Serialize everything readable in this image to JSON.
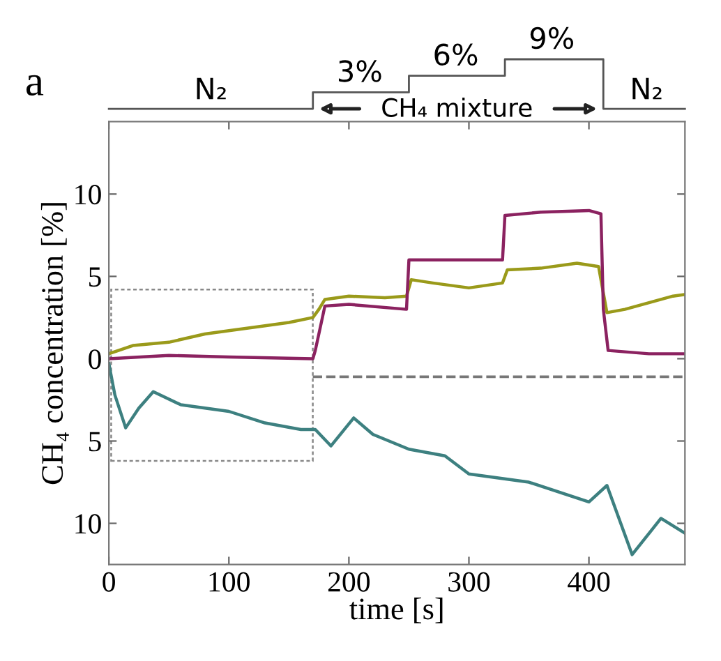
{
  "chart_data": {
    "type": "line",
    "xlabel": "time [s]",
    "ylabel": "CH₄ concentration [%]",
    "annotations": [
      "a",
      "N₂",
      "3%",
      "6%",
      "9%",
      "CH₄ mixture",
      "N₂"
    ],
    "xlim": [
      0,
      480
    ],
    "xticks": [
      0,
      100,
      200,
      300,
      400
    ],
    "ylim": [
      -12.5,
      14.4
    ],
    "yticks": [
      {
        "value": -10,
        "label": "10"
      },
      {
        "value": -5,
        "label": "5"
      },
      0,
      5,
      10
    ],
    "grid": false,
    "marker": "none",
    "line_style": "solid",
    "ref_lines": [
      {
        "axis": "y",
        "value": -1.1,
        "color": "#777777",
        "line_style": "dashed"
      }
    ],
    "series": [
      {
        "color": "#9a9a1a",
        "x": [
          0,
          20,
          50,
          80,
          100,
          130,
          150,
          170,
          175,
          180,
          200,
          230,
          248,
          252,
          270,
          300,
          328,
          332,
          360,
          390,
          408,
          412,
          415,
          430,
          450,
          470,
          480
        ],
        "values": [
          0.3,
          0.8,
          1.0,
          1.5,
          1.7,
          2.0,
          2.2,
          2.5,
          3.0,
          3.6,
          3.8,
          3.7,
          3.8,
          4.8,
          4.6,
          4.3,
          4.6,
          5.4,
          5.5,
          5.8,
          5.6,
          4.0,
          2.8,
          3.0,
          3.4,
          3.8,
          3.9
        ]
      },
      {
        "color": "#8b2260",
        "x": [
          0,
          50,
          100,
          170,
          172,
          180,
          200,
          248,
          250,
          290,
          328,
          330,
          360,
          400,
          410,
          412,
          416,
          450,
          480
        ],
        "values": [
          0,
          0.2,
          0.1,
          0,
          0.5,
          3.2,
          3.3,
          3.0,
          6.0,
          6.0,
          6.0,
          8.7,
          8.9,
          9.0,
          8.8,
          3.0,
          0.5,
          0.3,
          0.3
        ]
      },
      {
        "color": "#3d8080",
        "x": [
          0,
          5,
          14,
          25,
          37,
          60,
          100,
          130,
          160,
          172,
          185,
          204,
          220,
          250,
          280,
          300,
          350,
          400,
          415,
          436,
          460,
          480
        ],
        "values": [
          -0.3,
          -2.2,
          -4.2,
          -3.0,
          -2.0,
          -2.8,
          -3.2,
          -3.9,
          -4.3,
          -4.3,
          -5.3,
          -3.6,
          -4.6,
          -5.5,
          -5.9,
          -7.0,
          -7.5,
          -8.7,
          -7.7,
          -11.9,
          -9.7,
          -10.6
        ]
      }
    ]
  }
}
